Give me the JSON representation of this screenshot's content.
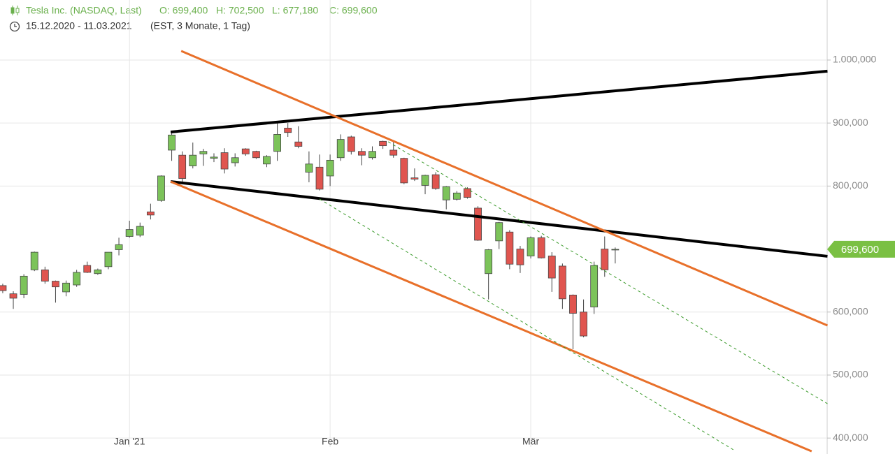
{
  "chart_data": {
    "type": "candlestick",
    "title": "Tesla Inc. (NASDAQ, Last)",
    "ohlc_labels": [
      "O: 699,400",
      "H: 702,500",
      "L: 677,180",
      "C: 699,600"
    ],
    "subtitle": "15.12.2020 - 11.03.2021",
    "subtitle_note": "(EST, 3 Monate, 1 Tag)",
    "categories": [
      null,
      null,
      null,
      null,
      null,
      null,
      null,
      null,
      null,
      null,
      null,
      null,
      "Jan '21",
      null,
      null,
      null,
      null,
      null,
      null,
      null,
      null,
      null,
      null,
      null,
      null,
      null,
      null,
      null,
      null,
      null,
      null,
      "Feb",
      null,
      null,
      null,
      null,
      null,
      null,
      null,
      null,
      null,
      null,
      null,
      null,
      null,
      null,
      null,
      null,
      null,
      null,
      "Mär",
      null,
      null,
      null,
      null,
      null,
      null,
      null,
      null
    ],
    "open": [
      642000,
      629000,
      628000,
      667000,
      667000,
      649000,
      632000,
      643000,
      674000,
      661000,
      672000,
      699000,
      720000,
      722000,
      759000,
      777000,
      857000,
      849000,
      832000,
      851000,
      844000,
      853000,
      837000,
      859000,
      855000,
      835000,
      855000,
      892000,
      870000,
      822000,
      830000,
      816000,
      845000,
      878000,
      855000,
      845000,
      871000,
      857000,
      844000,
      813000,
      801000,
      818000,
      778000,
      779000,
      796000,
      765000,
      661000,
      713000,
      727000,
      700000,
      689000,
      718000,
      689000,
      673000,
      627000,
      600000,
      608000,
      700000,
      699400
    ],
    "high": [
      645000,
      633000,
      660000,
      696000,
      672000,
      650000,
      650000,
      667000,
      680000,
      669000,
      695000,
      718000,
      745000,
      742000,
      772000,
      817000,
      884000,
      855000,
      869000,
      859000,
      852000,
      860000,
      852000,
      860000,
      856000,
      849000,
      900000,
      900000,
      895000,
      855000,
      850000,
      850000,
      882000,
      880000,
      860000,
      863000,
      872000,
      870000,
      845000,
      828000,
      818000,
      822000,
      800000,
      792000,
      798000,
      768000,
      700000,
      743000,
      730000,
      705000,
      720000,
      721000,
      695000,
      677000,
      628000,
      620000,
      680000,
      720000,
      702500
    ],
    "low": [
      630000,
      605000,
      622000,
      665000,
      645000,
      615000,
      625000,
      640000,
      662000,
      659000,
      668000,
      690000,
      718000,
      719000,
      747000,
      775000,
      840000,
      803000,
      828000,
      832000,
      838000,
      820000,
      831000,
      848000,
      843000,
      830000,
      840000,
      878000,
      860000,
      806000,
      793000,
      800000,
      840000,
      850000,
      833000,
      842000,
      859000,
      845000,
      803000,
      808000,
      787000,
      794000,
      763000,
      777000,
      780000,
      713000,
      620000,
      700000,
      668000,
      662000,
      685000,
      685000,
      632000,
      605000,
      541000,
      560000,
      597000,
      656000,
      677180
    ],
    "close": [
      634000,
      622000,
      657000,
      695000,
      649000,
      640000,
      646000,
      663000,
      663000,
      667000,
      695000,
      707000,
      731000,
      736000,
      754000,
      816000,
      881000,
      812000,
      849000,
      855000,
      846000,
      827000,
      845000,
      851000,
      845000,
      847000,
      882000,
      885000,
      863000,
      835000,
      795000,
      841000,
      874000,
      855000,
      849000,
      855000,
      864000,
      849000,
      805000,
      811000,
      817000,
      796000,
      799000,
      789000,
      782000,
      714000,
      699000,
      742000,
      676000,
      675000,
      718000,
      686000,
      654000,
      621000,
      598000,
      562000,
      674000,
      667000,
      699600
    ],
    "up_color": "#7cc35a",
    "down_color": "#e0554f",
    "wick_color": "#444444",
    "price_tag": "699,600",
    "price_tag_color": "#7ac043",
    "xlim": [
      -0.26,
      78.07
    ],
    "ylim": [
      374700,
      1095300
    ],
    "yticks": [
      {
        "value": 1000000,
        "label": "1.000,000"
      },
      {
        "value": 900000,
        "label": "900,000"
      },
      {
        "value": 800000,
        "label": "800,000"
      },
      {
        "value": 600000,
        "label": "600,000"
      },
      {
        "value": 500000,
        "label": "500,000"
      },
      {
        "value": 400000,
        "label": "400,000"
      }
    ],
    "grid": true,
    "trendlines": [
      {
        "color": "#000000",
        "width": 4,
        "dashed": false,
        "x": [
          15.9,
          78.1
        ],
        "y": [
          885800,
          982300
        ]
      },
      {
        "color": "#000000",
        "width": 4,
        "dashed": false,
        "x": [
          15.9,
          78.1
        ],
        "y": [
          807100,
          688500
        ]
      },
      {
        "color": "#e8702a",
        "width": 3,
        "dashed": false,
        "x": [
          16.9,
          78.1
        ],
        "y": [
          1014400,
          578700
        ]
      },
      {
        "color": "#e8702a",
        "width": 3,
        "dashed": false,
        "x": [
          15.9,
          76.6
        ],
        "y": [
          807100,
          379000
        ]
      },
      {
        "color": "#3a9a2a",
        "width": 1,
        "dashed": true,
        "x": [
          36.5,
          78.1
        ],
        "y": [
          870300,
          454500
        ]
      },
      {
        "color": "#3a9a2a",
        "width": 1,
        "dashed": true,
        "x": [
          30.0,
          69.3
        ],
        "y": [
          779400,
          380300
        ]
      }
    ]
  }
}
